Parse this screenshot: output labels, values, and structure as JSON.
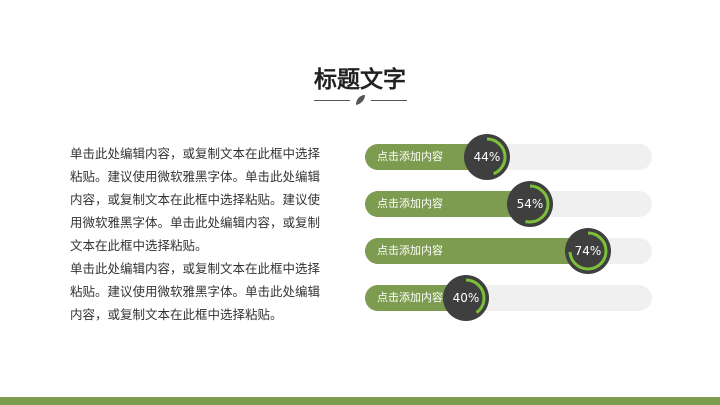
{
  "title": "标题文字",
  "paragraphs": [
    "单击此处编辑内容，或复制文本在此框中选择粘贴。建议使用微软雅黑字体。单击此处编辑内容，或复制文本在此框中选择粘贴。建议使用微软雅黑字体。单击此处编辑内容，或复制文本在此框中选择粘贴。",
    "单击此处编辑内容，或复制文本在此框中选择粘贴。建议使用微软雅黑字体。单击此处编辑内容，或复制文本在此框中选择粘贴。"
  ],
  "bars": [
    {
      "label": "点击添加内容",
      "percent_text": "44%",
      "value": 44
    },
    {
      "label": "点击添加内容",
      "percent_text": "54%",
      "value": 54
    },
    {
      "label": "点击添加内容",
      "percent_text": "74%",
      "value": 74
    },
    {
      "label": "点击添加内容",
      "percent_text": "40%",
      "value": 40
    }
  ],
  "colors": {
    "accent": "#7d9c4f",
    "arc": "#7cc03a",
    "badge": "#3f3f3f",
    "track": "#f0f0f0"
  }
}
